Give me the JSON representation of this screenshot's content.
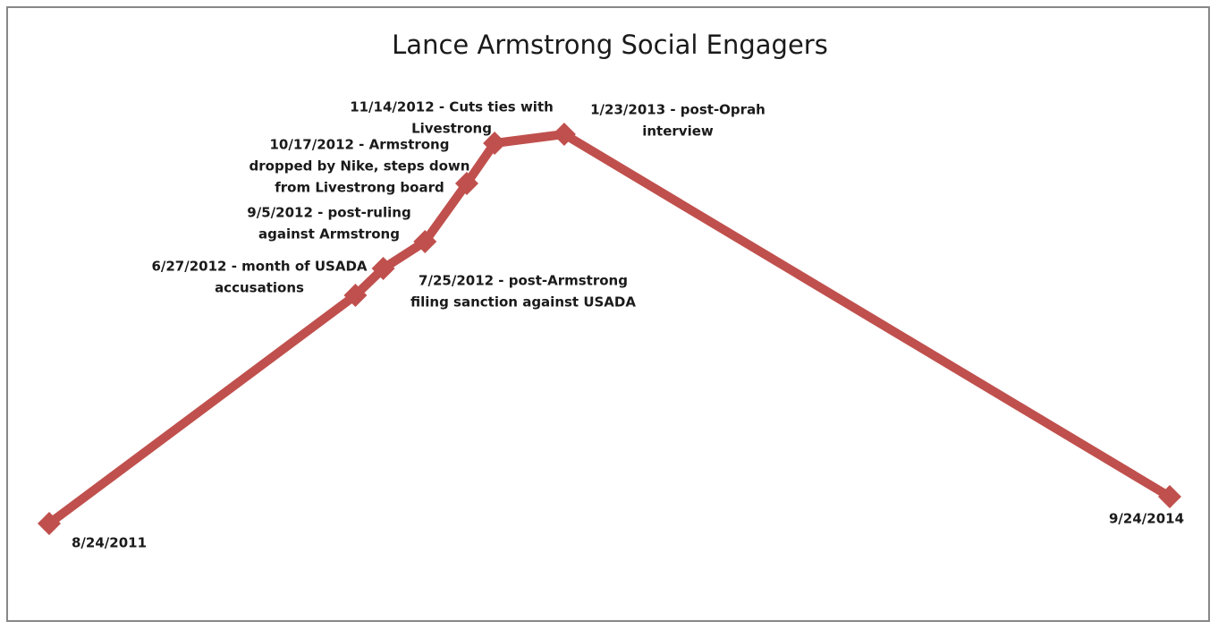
{
  "chart_data": {
    "type": "line",
    "title": "Lance Armstrong Social Engagers",
    "x": [
      "8/24/2011",
      "6/27/2012",
      "7/25/2012",
      "9/5/2012",
      "10/17/2012",
      "11/14/2012",
      "1/23/2013",
      "9/24/2014"
    ],
    "series": [
      {
        "color": "#c0504d",
        "values": [
          3,
          54,
          60,
          66,
          79,
          88,
          90,
          9
        ]
      }
    ],
    "ylim": [
      0,
      100
    ],
    "annotations": [
      [
        "8/24/2011"
      ],
      [
        "6/27/2012 - month of USADA",
        "accusations"
      ],
      [
        "7/25/2012 - post-Armstrong",
        "filing sanction against USADA"
      ],
      [
        "9/5/2012 - post-ruling",
        "against Armstrong"
      ],
      [
        "10/17/2012 - Armstrong",
        "dropped by Nike, steps down",
        "from Livestrong board"
      ],
      [
        "11/14/2012 - Cuts ties with",
        "Livestrong"
      ],
      [
        "1/23/2013 - post-Oprah",
        "interview"
      ],
      [
        "9/24/2014"
      ]
    ]
  }
}
